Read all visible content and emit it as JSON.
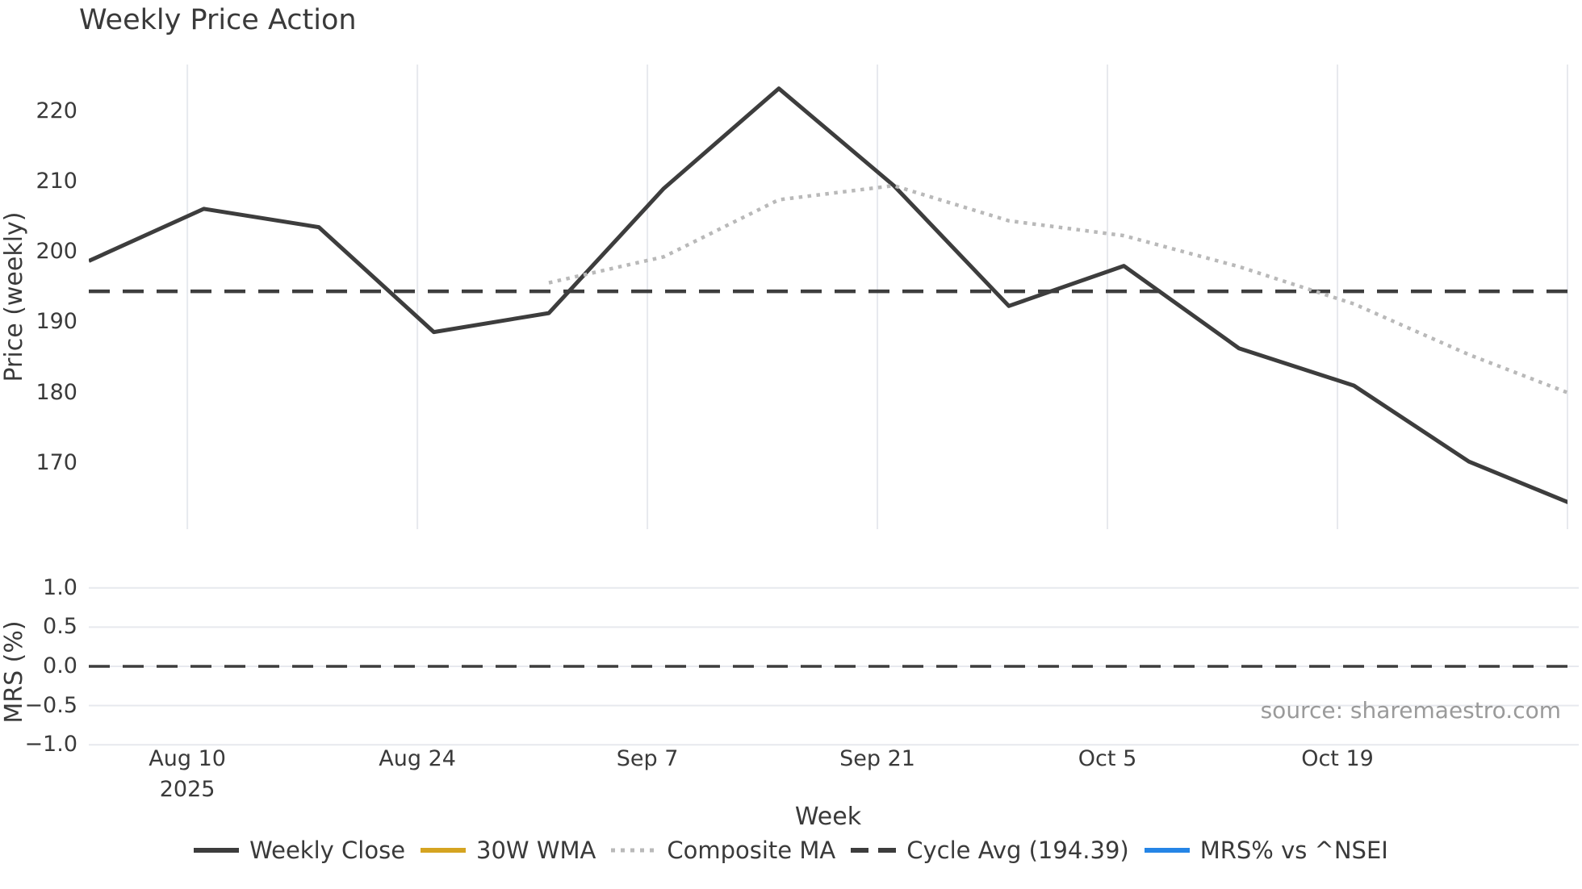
{
  "title": "Weekly Price Action",
  "source_note": "source: sharemaestro.com",
  "colors": {
    "line_dark": "#3d3d3d",
    "text_dark": "#3a3a3a",
    "composite_ma_gray": "#b9b9b9",
    "wma_orange": "#d5a421",
    "mrs_blue": "#2585e6",
    "grid": "#e7e9ee",
    "source_gray": "#9a9a9a",
    "background": "#ffffff"
  },
  "chart_data": {
    "type": "line",
    "title": "Weekly Price Action",
    "x": {
      "label": "Week",
      "total_days": 90,
      "ticks": [
        {
          "day": 6,
          "label": "Aug 10",
          "sublabel": "2025"
        },
        {
          "day": 20,
          "label": "Aug 24",
          "sublabel": ""
        },
        {
          "day": 34,
          "label": "Sep 7",
          "sublabel": ""
        },
        {
          "day": 48,
          "label": "Sep 21",
          "sublabel": ""
        },
        {
          "day": 62,
          "label": "Oct 5",
          "sublabel": ""
        },
        {
          "day": 76,
          "label": "Oct 19",
          "sublabel": ""
        },
        {
          "day": 90,
          "label": "",
          "sublabel": ""
        }
      ]
    },
    "panels": [
      {
        "name": "price",
        "ylabel": "Price (weekly)",
        "ylim": [
          160.6,
          226.6
        ],
        "yticks": [
          170,
          180,
          190,
          200,
          210,
          220
        ],
        "grid": "vertical"
      },
      {
        "name": "mrs",
        "ylabel": "MRS (%)",
        "ylim": [
          -1.1,
          1.1
        ],
        "yticks": [
          1.0,
          0.5,
          0.0,
          -0.5,
          -1.0
        ],
        "ytick_labels": [
          "1.0",
          "0.5",
          "0.0",
          "−0.5",
          "−1.0"
        ],
        "grid": "horizontal",
        "zero_line": {
          "value": 0.0,
          "style": "dashed",
          "color": "#3d3d3d"
        }
      }
    ],
    "series": [
      {
        "name": "Weekly Close",
        "panel": "price",
        "style": "solid",
        "color": "#3d3d3d",
        "week_dates": [
          "Aug 4",
          "Aug 11",
          "Aug 18",
          "Aug 25",
          "Sep 1",
          "Sep 8",
          "Sep 15",
          "Sep 22",
          "Sep 29",
          "Oct 6",
          "Oct 13",
          "Oct 20",
          "Oct 27",
          "Nov 3 (clipped)"
        ],
        "days": [
          0,
          7,
          14,
          21,
          28,
          35,
          42,
          49,
          56,
          63,
          70,
          77,
          84,
          91
        ],
        "values": [
          198.7,
          206.1,
          203.5,
          188.6,
          191.3,
          209.0,
          223.2,
          209.4,
          192.3,
          198.0,
          186.3,
          181.0,
          170.2,
          163.5
        ]
      },
      {
        "name": "30W WMA",
        "panel": "price",
        "style": "solid",
        "color": "#d5a421",
        "days": [],
        "values": []
      },
      {
        "name": "Composite MA",
        "panel": "price",
        "style": "dotted",
        "color": "#b9b9b9",
        "week_dates": [
          "Sep 1",
          "Sep 8",
          "Sep 15",
          "Sep 22",
          "Sep 29",
          "Oct 6",
          "Oct 13",
          "Oct 20",
          "Oct 27",
          "Nov 3 (clipped)"
        ],
        "days": [
          28,
          35,
          42,
          49,
          56,
          63,
          70,
          77,
          84,
          91
        ],
        "values": [
          195.6,
          199.3,
          207.4,
          209.4,
          204.4,
          202.3,
          197.9,
          192.6,
          185.4,
          179.1
        ]
      },
      {
        "name": "Cycle Avg (194.39)",
        "panel": "price",
        "style": "dashed",
        "color": "#3d3d3d",
        "constant_value": 194.39
      },
      {
        "name": "MRS% vs ^NSEI",
        "panel": "mrs",
        "style": "solid",
        "color": "#2585e6",
        "days": [],
        "values": []
      }
    ]
  },
  "legend": {
    "items": [
      {
        "label": "Weekly Close",
        "style": "solid",
        "color": "#3d3d3d"
      },
      {
        "label": "30W WMA",
        "style": "solid",
        "color": "#d5a421"
      },
      {
        "label": "Composite MA",
        "style": "dotted",
        "color": "#b9b9b9"
      },
      {
        "label": "Cycle Avg (194.39)",
        "style": "dashed",
        "color": "#3d3d3d"
      },
      {
        "label": "MRS% vs ^NSEI",
        "style": "solid",
        "color": "#2585e6"
      }
    ]
  }
}
